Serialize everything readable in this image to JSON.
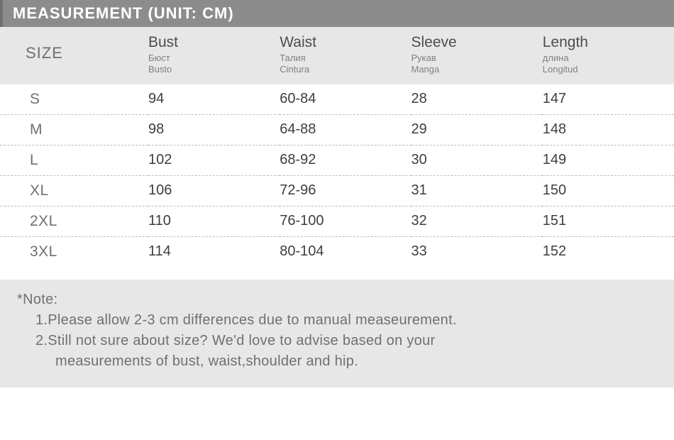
{
  "title": "MEASUREMENT (UNIT: CM)",
  "colors": {
    "title_bg": "#8c8c8c",
    "title_border": "#6f6f6f",
    "title_text": "#ffffff",
    "header_bg": "#e7e7e7",
    "header_main": "#4d4d4d",
    "header_sub": "#808080",
    "size_label": "#707070",
    "cell_text": "#3f3f3f",
    "row_border": "#bcbcbc",
    "note_bg": "#e7e7e7",
    "note_text": "#707070"
  },
  "fonts": {
    "title_pt": 22,
    "header_main_pt": 21,
    "header_sub_pt": 13,
    "cell_pt": 20,
    "note_pt": 20
  },
  "headers": {
    "size": "SIZE",
    "cols": [
      {
        "main": "Bust",
        "sub1": "Бюст",
        "sub2": "Busto"
      },
      {
        "main": "Waist",
        "sub1": "Талия",
        "sub2": "Cintura"
      },
      {
        "main": "Sleeve",
        "sub1": "Рукав",
        "sub2": "Manga"
      },
      {
        "main": "Length",
        "sub1": "длина",
        "sub2": "Longitud"
      }
    ]
  },
  "rows": [
    {
      "size": "S",
      "bust": "94",
      "waist": "60-84",
      "sleeve": "28",
      "length": "147"
    },
    {
      "size": "M",
      "bust": "98",
      "waist": "64-88",
      "sleeve": "29",
      "length": "148"
    },
    {
      "size": "L",
      "bust": "102",
      "waist": "68-92",
      "sleeve": "30",
      "length": "149"
    },
    {
      "size": "XL",
      "bust": "106",
      "waist": "72-96",
      "sleeve": "31",
      "length": "150"
    },
    {
      "size": "2XL",
      "bust": "110",
      "waist": "76-100",
      "sleeve": "32",
      "length": "151"
    },
    {
      "size": "3XL",
      "bust": "114",
      "waist": "80-104",
      "sleeve": "33",
      "length": "152"
    }
  ],
  "note": {
    "title": "*Note:",
    "line1": "1.Please allow 2-3 cm differences due to manual measeurement.",
    "line2a": "2.Still not sure about size? We'd love to advise based on your",
    "line2b": "measurements of bust, waist,shoulder and hip."
  }
}
